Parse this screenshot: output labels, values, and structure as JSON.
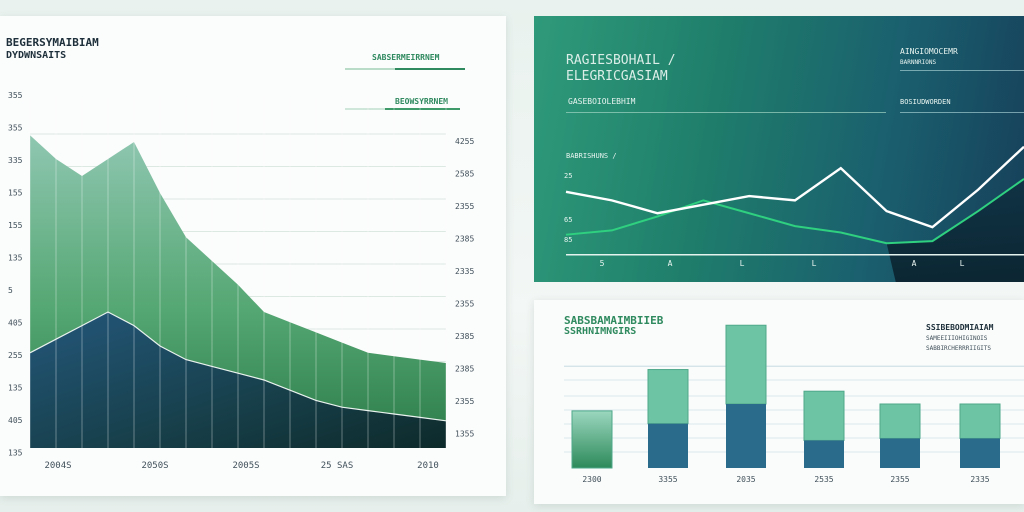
{
  "left_chart": {
    "title_lines": [
      "BEGERSYMAIBIAM",
      "DYDWNSAITS"
    ],
    "legend": [
      {
        "label": "SABSERMEIRRNEM",
        "color": "#2f8a5f"
      },
      {
        "label": "BEOWSYRRNEM",
        "color": "#2f8a5f"
      }
    ],
    "y_labels_left": [
      "355",
      "355",
      "335",
      "155",
      "155",
      "135",
      "5",
      "405",
      "255",
      "135",
      "405",
      "135"
    ],
    "y_labels_right": [
      "4255",
      "2585",
      "2355",
      "2385",
      "2335",
      "2355",
      "2385",
      "2385",
      "2355",
      "1355"
    ],
    "x_labels": [
      "2004S",
      "2050S",
      "2005S",
      "25 SAS",
      "2010"
    ],
    "chart_data": {
      "type": "area",
      "x": [
        0,
        1,
        2,
        3,
        4,
        5,
        6,
        7,
        8,
        9,
        10,
        11,
        12,
        13,
        14,
        15,
        16
      ],
      "series": [
        {
          "values": [
            92,
            85,
            80,
            85,
            90,
            75,
            62,
            55,
            48,
            40,
            37,
            34,
            31,
            28,
            27,
            26,
            25
          ],
          "color": "#7ab99f"
        },
        {
          "values": [
            28,
            32,
            36,
            40,
            36,
            30,
            26,
            24,
            22,
            20,
            17,
            14,
            12,
            11,
            10,
            9,
            8
          ],
          "color": "#1e4d63"
        }
      ],
      "ylim": [
        0,
        100
      ],
      "grid": true
    }
  },
  "top_right_chart": {
    "title_lines": [
      "RAGIESBOHAIL /",
      "ELEGRICGASIAM"
    ],
    "subtitle": "GASEBOIOLEBHIM",
    "legend_lines": [
      "AINGIOMOCEMR",
      "BARNNRIONS"
    ],
    "series_label": "BOSIUDWORDEN",
    "mid_label": "BABRISHUNS /",
    "y_labels": [
      "25",
      "65",
      "85"
    ],
    "x_ticks": [
      "5",
      "A",
      "L",
      "L",
      "A",
      "L"
    ],
    "chart_data": {
      "type": "line",
      "x": [
        0,
        1,
        2,
        3,
        4,
        5,
        6,
        7,
        8,
        9,
        10
      ],
      "series": [
        {
          "values": [
            58,
            50,
            38,
            46,
            54,
            50,
            80,
            40,
            25,
            60,
            100
          ],
          "color": "#ffffff"
        },
        {
          "values": [
            18,
            22,
            35,
            50,
            38,
            26,
            20,
            10,
            12,
            40,
            70
          ],
          "color": "#2fc67a"
        }
      ],
      "ylim": [
        0,
        110
      ]
    }
  },
  "bottom_right_chart": {
    "title_lines": [
      "SABSBAMAIMBIIEB",
      "SSRHNIMNGIRS"
    ],
    "legend_lines": [
      "SSIBEBODMIAIAM",
      "SAMEEIIIOHIGINOIS",
      "SABBIRCHERRRIIGITS"
    ],
    "x_labels": [
      "2300",
      "3355",
      "2035",
      "2535",
      "2355",
      "2335"
    ],
    "chart_data": {
      "type": "bar",
      "categories": [
        "2300",
        "3355",
        "2035",
        "2535",
        "2355",
        "2335"
      ],
      "series": [
        {
          "values": [
            0,
            45,
            65,
            28,
            30,
            30
          ],
          "color": "#1e5f7a"
        },
        {
          "values": [
            58,
            55,
            80,
            50,
            35,
            35
          ],
          "color": "#69c4a4"
        }
      ],
      "ylim": [
        0,
        130
      ]
    }
  }
}
